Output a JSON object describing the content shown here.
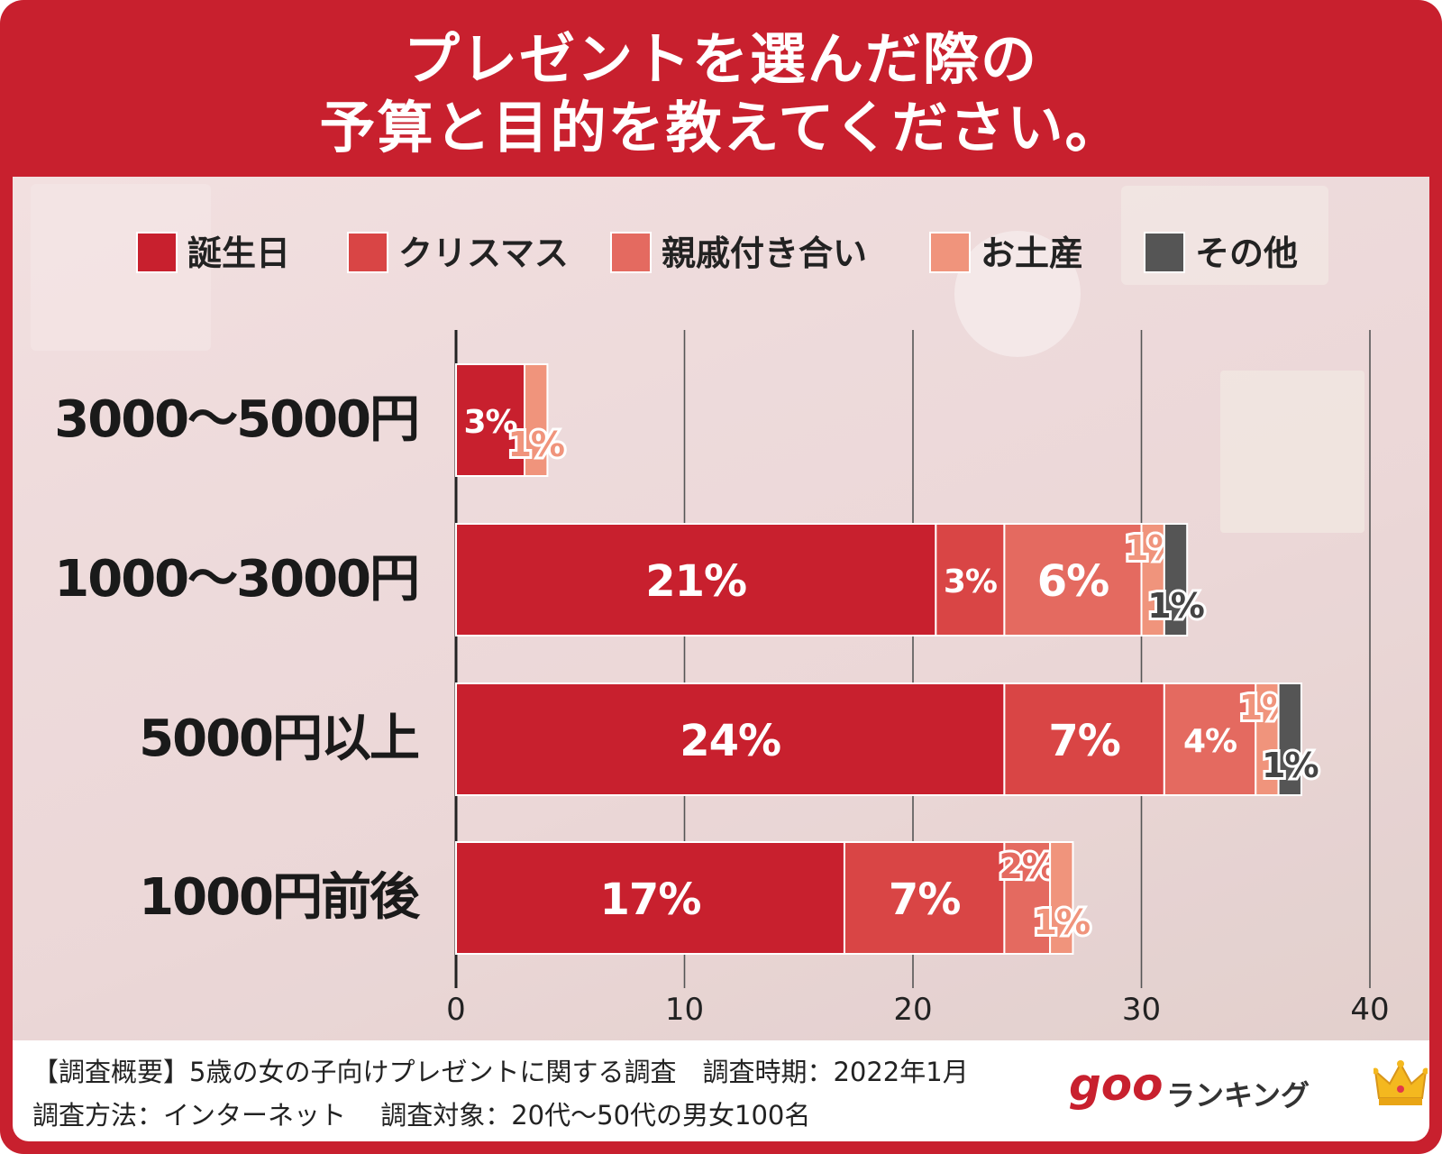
{
  "title_line1": "プレゼントを選んだ際の",
  "title_line2": "予算と目的を教えてください。",
  "chart_data": {
    "type": "bar",
    "orientation": "horizontal",
    "stacked": true,
    "categories": [
      "3000〜5000円",
      "1000〜3000円",
      "5000円以上",
      "1000円前後"
    ],
    "series": [
      {
        "name": "誕生日",
        "color": "#c8202e",
        "values": [
          3,
          21,
          24,
          17
        ],
        "labels": [
          "3%",
          "21%",
          "24%",
          "17%"
        ]
      },
      {
        "name": "クリスマス",
        "color": "#d94545",
        "values": [
          0,
          3,
          7,
          7
        ],
        "labels": [
          "",
          "3%",
          "7%",
          "7%"
        ]
      },
      {
        "name": "親戚付き合い",
        "color": "#e46a60",
        "values": [
          0,
          6,
          4,
          2
        ],
        "labels": [
          "",
          "6%",
          "4%",
          "2%"
        ]
      },
      {
        "name": "お土産",
        "color": "#f0947c",
        "values": [
          1,
          1,
          1,
          1
        ],
        "labels": [
          "1%",
          "1%",
          "1%",
          "1%"
        ]
      },
      {
        "name": "その他",
        "color": "#555555",
        "values": [
          0,
          1,
          1,
          0
        ],
        "labels": [
          "",
          "1%",
          "1%",
          ""
        ]
      }
    ],
    "xlim": [
      0,
      40
    ],
    "xticks": [
      "0",
      "10",
      "20",
      "30",
      "40"
    ],
    "grid": true,
    "legend_position": "top"
  },
  "footer": {
    "line1": "【調査概要】5歳の女の子向けプレゼントに関する調査　調査時期：2022年1月",
    "line2": "調査方法：インターネット　 調査対象：20代〜50代の男女100名",
    "logo_goo": "goo",
    "logo_rank": "ランキング",
    "crown_icon": "crown-icon"
  }
}
